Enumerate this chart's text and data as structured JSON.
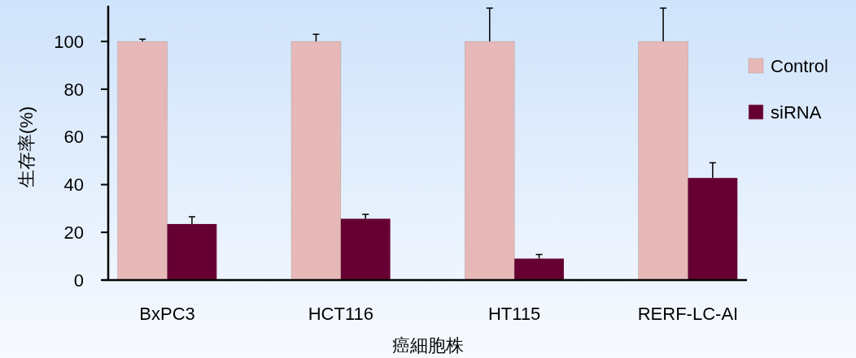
{
  "chart_data": {
    "type": "bar",
    "xlabel": "癌細胞株",
    "ylabel": "生存率(%)",
    "categories": [
      "BxPC3",
      "HCT116",
      "HT115",
      "RERF-LC-AI"
    ],
    "series": [
      {
        "name": "Control",
        "color": "#e6b8b7",
        "values": [
          100,
          100,
          100,
          100
        ],
        "errors": [
          [
            100,
            101
          ],
          [
            100,
            103
          ],
          [
            100,
            114
          ],
          [
            100,
            114
          ]
        ]
      },
      {
        "name": "siRNA",
        "color": "#660033",
        "values": [
          23.5,
          25.7,
          9,
          42.8
        ],
        "errors": [
          [
            23.5,
            26.5
          ],
          [
            25.7,
            27.6
          ],
          [
            9,
            10.7
          ],
          [
            42.8,
            49.2
          ]
        ]
      }
    ],
    "ylim": [
      0,
      115
    ],
    "yticks": [
      0,
      20,
      40,
      60,
      80,
      100
    ],
    "legend": "right",
    "grid": false
  }
}
